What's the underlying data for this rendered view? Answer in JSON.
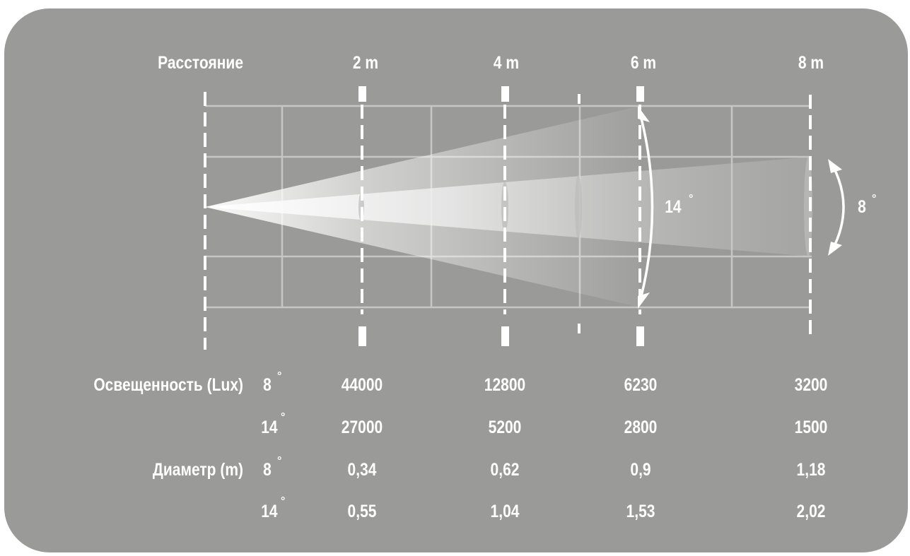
{
  "header": {
    "distance_label": "Расстояние",
    "distances": [
      "2 m",
      "4 m",
      "6 m",
      "8 m"
    ]
  },
  "beam": {
    "angle_wide": "14",
    "angle_narrow": "8",
    "degree_symbol": "°"
  },
  "table": {
    "illuminance_label": "Освещенность (Lux)",
    "diameter_label": "Диаметр (m)",
    "rows": [
      {
        "angle": "8",
        "values": [
          "44000",
          "12800",
          "6230",
          "3200"
        ]
      },
      {
        "angle": "14",
        "values": [
          "27000",
          "5200",
          "2800",
          "1500"
        ]
      },
      {
        "angle": "8",
        "values": [
          "0,34",
          "0,62",
          "0,9",
          "1,18"
        ]
      },
      {
        "angle": "14",
        "values": [
          "0,55",
          "1,04",
          "1,53",
          "2,02"
        ]
      }
    ]
  },
  "colors": {
    "panel": "#9a9a98",
    "text": "#ffffff",
    "grid": "#c4c4c2"
  }
}
